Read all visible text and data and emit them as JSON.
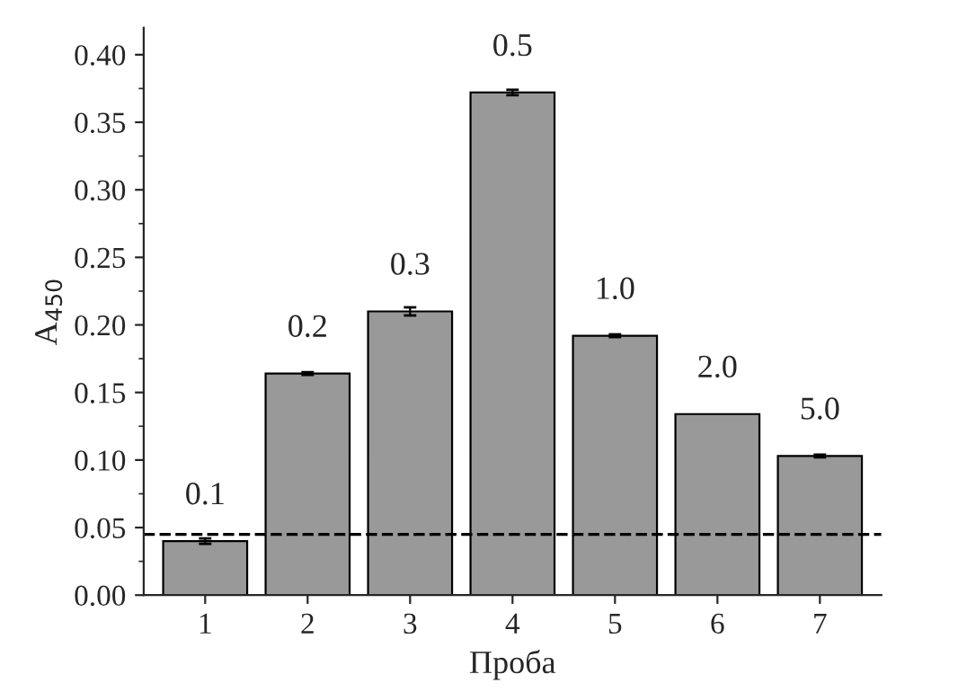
{
  "chart_data": {
    "type": "bar",
    "xlabel": "Проба",
    "ylabel": "A$_{450}$",
    "categories": [
      "1",
      "2",
      "3",
      "4",
      "5",
      "6",
      "7"
    ],
    "values": [
      0.04,
      0.164,
      0.21,
      0.372,
      0.192,
      0.134,
      0.103
    ],
    "errors": [
      0.002,
      0.001,
      0.003,
      0.002,
      0.001,
      null,
      0.001
    ],
    "color": "#999999",
    "ylim": [
      0,
      0.42
    ],
    "yticks": [
      {
        "value": 0,
        "label": "0.00"
      },
      {
        "value": 0.05,
        "label": "0.05"
      },
      {
        "value": 0.1,
        "label": "0.10"
      },
      {
        "value": 0.15,
        "label": "0.15"
      },
      {
        "value": 0.2,
        "label": "0.20"
      },
      {
        "value": 0.25,
        "label": "0.25"
      },
      {
        "value": 0.3,
        "label": "0.30"
      },
      {
        "value": 0.35,
        "label": "0.35"
      },
      {
        "value": 0.4,
        "label": "0.40"
      }
    ],
    "ref_lines": [
      {
        "axis": "y",
        "value": 0.045,
        "line_style": "dashed",
        "color": "#000000"
      }
    ],
    "annotations": [
      "0.1",
      "0.2",
      "0.3",
      "0.5",
      "1.0",
      "2.0",
      "5.0"
    ],
    "grid": false,
    "legend": false
  }
}
